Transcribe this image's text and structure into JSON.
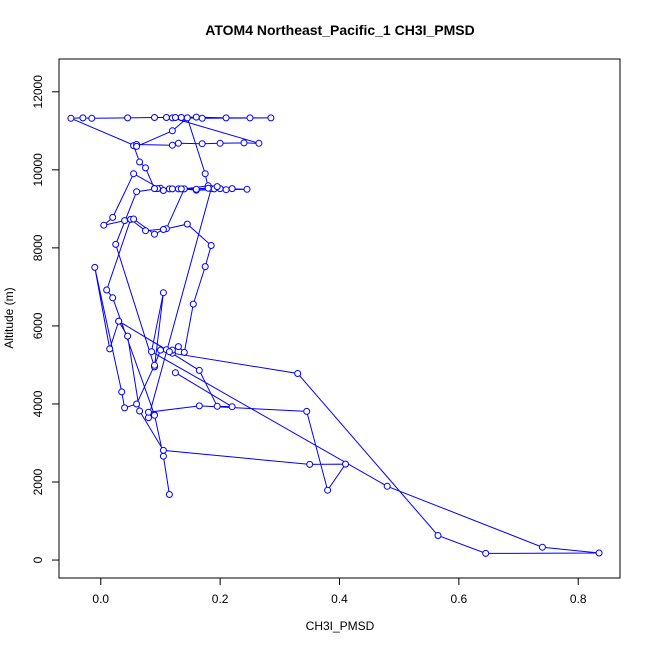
{
  "chart_data": {
    "type": "line",
    "title": "ATOM4 Northeast_Pacific_1 CH3I_PMSD",
    "xlabel": "CH3I_PMSD",
    "ylabel": "Altitude (m)",
    "xlim": [
      -0.07,
      0.87
    ],
    "ylim": [
      -460,
      12840
    ],
    "xticks": [
      0.0,
      0.2,
      0.4,
      0.6,
      0.8
    ],
    "xtick_labels": [
      "0.0",
      "0.2",
      "0.4",
      "0.6",
      "0.8"
    ],
    "yticks": [
      0,
      2000,
      4000,
      6000,
      8000,
      10000,
      12000
    ],
    "ytick_labels": [
      "0",
      "2000",
      "4000",
      "6000",
      "8000",
      "10000",
      "12000"
    ],
    "grid": false,
    "series": [
      {
        "color": "#0000ff",
        "marker": "open-circle",
        "x": [
          0.115,
          0.105,
          0.09,
          0.02,
          0.01,
          0.05,
          0.075,
          0.11,
          0.14,
          0.18,
          0.185,
          0.08,
          0.09,
          0.08,
          0.165,
          0.345,
          0.38,
          0.41,
          0.35,
          0.105,
          0.065,
          0.045,
          0.03,
          0.11,
          0.12,
          0.33,
          0.565,
          0.645,
          0.835,
          0.74,
          0.48,
          0.085,
          0.105,
          0.09,
          0.025,
          0.06,
          0.1,
          0.22,
          0.13,
          0.19,
          0.2,
          0.245,
          0.21,
          0.16,
          0.135,
          0.115,
          0.095,
          0.09,
          0.075,
          0.065,
          0.055,
          0.06,
          0.12,
          0.13,
          0.17,
          0.2,
          0.24,
          0.265,
          0.12,
          0.135,
          0.16,
          0.21,
          0.25,
          0.285,
          0.17,
          0.145,
          0.12,
          0.06,
          -0.05,
          -0.03,
          -0.015,
          0.045,
          0.09,
          0.11,
          0.125,
          0.145,
          0.175,
          0.18,
          0.195,
          0.16,
          0.12,
          0.105,
          0.055,
          0.02,
          0.005,
          0.04,
          0.055,
          0.09,
          0.105,
          0.145,
          0.185,
          0.175,
          0.155,
          0.14,
          0.13,
          0.12,
          0.1,
          0.09,
          0.06,
          0.04,
          0.035,
          -0.01,
          0.015,
          0.03,
          0.115,
          0.165,
          0.195,
          0.22,
          0.125
        ],
        "y": [
          1680,
          2660,
          3720,
          6720,
          6920,
          8730,
          8440,
          8490,
          9510,
          9590,
          9520,
          3650,
          3710,
          3790,
          3950,
          3810,
          1790,
          2460,
          2450,
          2810,
          3820,
          5740,
          6120,
          5390,
          5300,
          4780,
          630,
          170,
          180,
          330,
          1890,
          5340,
          6850,
          4950,
          8090,
          9440,
          9530,
          9520,
          9510,
          9510,
          9520,
          9500,
          9490,
          9480,
          9510,
          9510,
          9520,
          9520,
          10050,
          10200,
          10620,
          10650,
          10630,
          10680,
          10670,
          10680,
          10690,
          10680,
          11330,
          11340,
          11350,
          11330,
          11330,
          11330,
          11320,
          11330,
          11000,
          10600,
          11320,
          11330,
          11320,
          11330,
          11340,
          11340,
          11340,
          11330,
          9900,
          9530,
          9570,
          9500,
          9510,
          9470,
          9900,
          8780,
          8580,
          8700,
          8740,
          8350,
          8470,
          8610,
          8060,
          7520,
          6560,
          5320,
          5470,
          5380,
          5380,
          4990,
          4000,
          3900,
          4310,
          7500,
          5410,
          6120,
          5340,
          4860,
          3940,
          3930,
          4800
        ]
      }
    ]
  }
}
